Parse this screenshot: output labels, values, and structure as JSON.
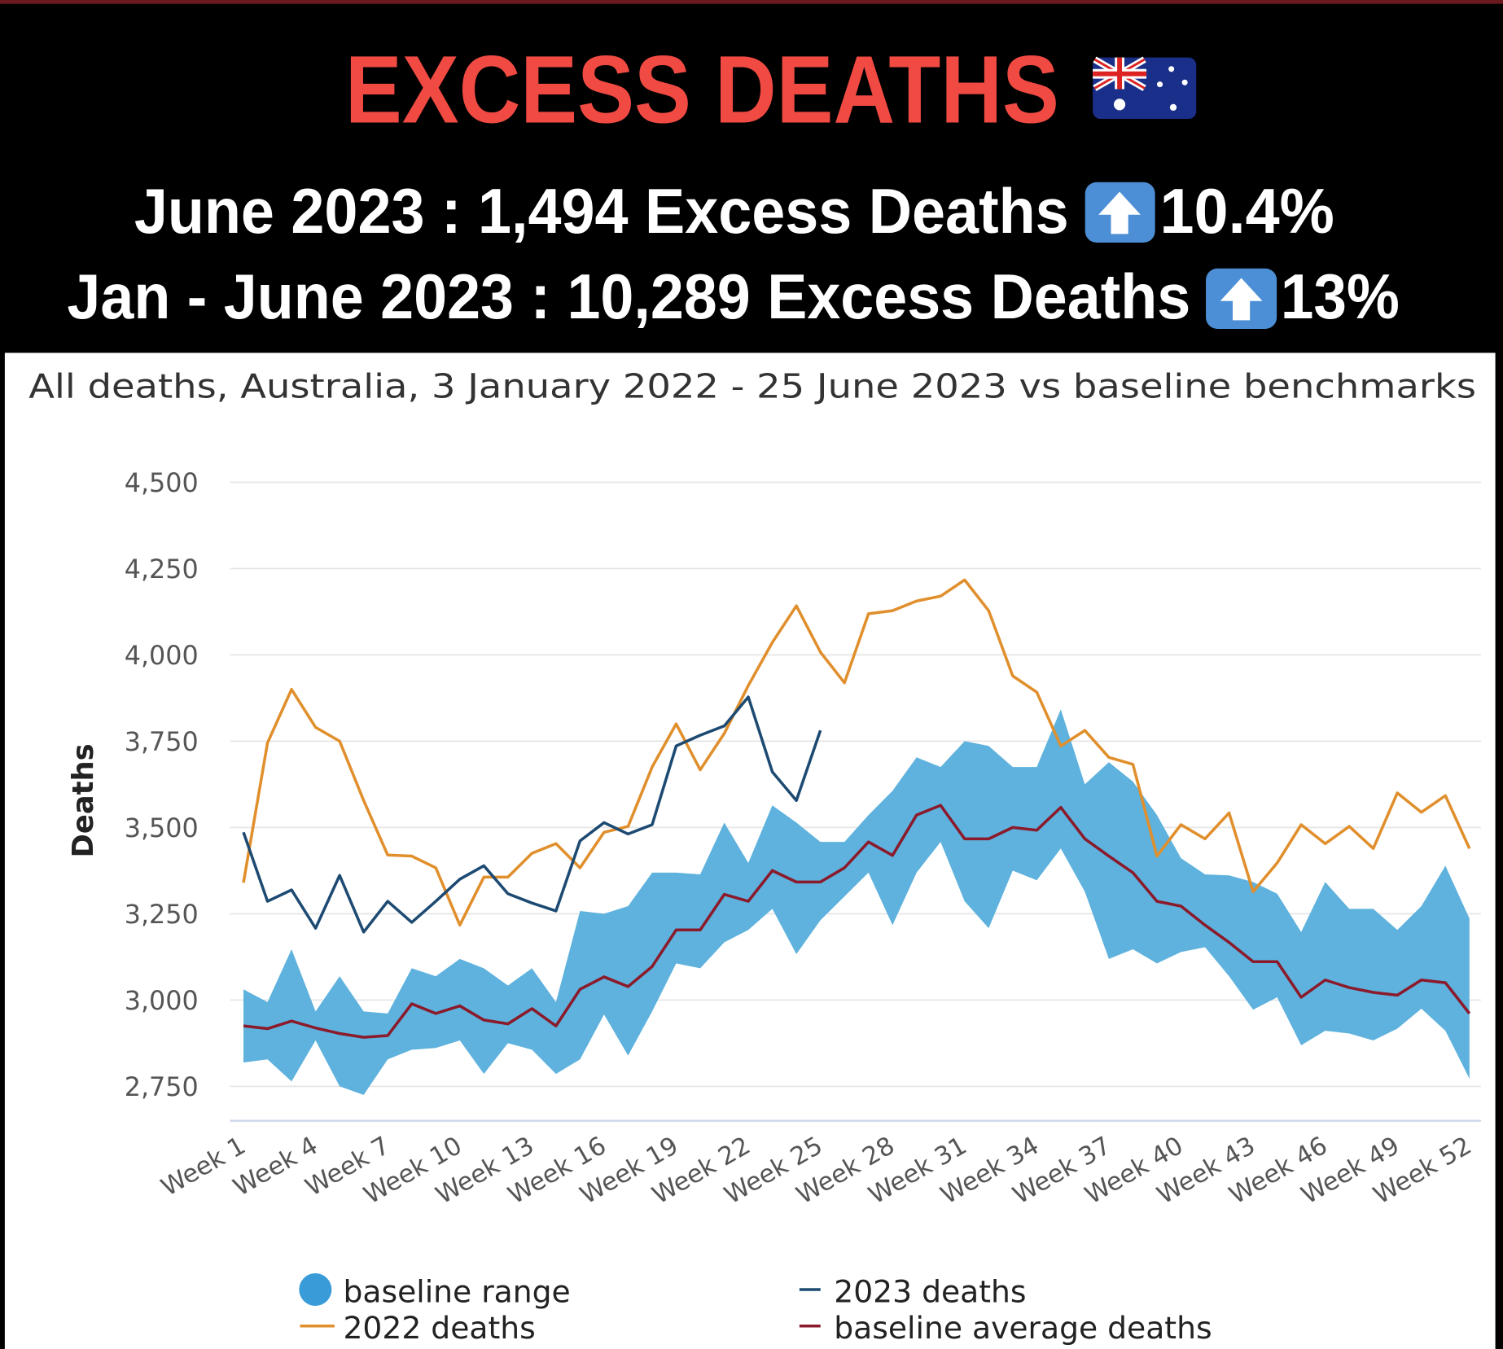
{
  "header": {
    "title": "EXCESS DEATHS",
    "lines": [
      {
        "text": "June 2023 : 1,494 Excess Deaths",
        "change": "10.4%"
      },
      {
        "text": "Jan - June 2023 : 10,289 Excess Deaths",
        "change": "13%"
      }
    ]
  },
  "chart_data": {
    "type": "line",
    "title": "All deaths, Australia, 3 January 2022 - 25 June 2023 vs baseline benchmarks",
    "y_label": "Deaths",
    "categories": [
      "Week 1",
      null,
      null,
      "Week 4",
      null,
      null,
      "Week 7",
      null,
      null,
      "Week 10",
      null,
      null,
      "Week 13",
      null,
      null,
      "Week 16",
      null,
      null,
      "Week 19",
      null,
      null,
      "Week 22",
      null,
      null,
      "Week 25",
      null,
      null,
      "Week 28",
      null,
      null,
      "Week 31",
      null,
      null,
      "Week 34",
      null,
      null,
      "Week 37",
      null,
      null,
      "Week 40",
      null,
      null,
      "Week 43",
      null,
      null,
      "Week 46",
      null,
      null,
      "Week 49",
      null,
      null,
      "Week 52"
    ],
    "series": [
      {
        "name": "baseline range",
        "color": "#5eb2dd",
        "marker_color": "#3a9bd9",
        "upper": [
          3031,
          2994,
          3147,
          2967,
          3069,
          2967,
          2961,
          3092,
          3069,
          3119,
          3092,
          3042,
          3092,
          2994,
          3258,
          3250,
          3272,
          3369,
          3369,
          3364,
          3514,
          3397,
          3564,
          3514,
          3458,
          3458,
          3536,
          3606,
          3703,
          3675,
          3750,
          3736,
          3675,
          3675,
          3842,
          3625,
          3689,
          3633,
          3536,
          3411,
          3364,
          3361,
          3342,
          3308,
          3197,
          3342,
          3264,
          3264,
          3203,
          3272,
          3389,
          3236
        ],
        "lower": [
          2819,
          2828,
          2764,
          2883,
          2750,
          2725,
          2828,
          2856,
          2861,
          2883,
          2786,
          2875,
          2856,
          2786,
          2828,
          2958,
          2839,
          2967,
          3106,
          3092,
          3167,
          3203,
          3264,
          3133,
          3231,
          3300,
          3369,
          3217,
          3369,
          3458,
          3286,
          3208,
          3375,
          3347,
          3439,
          3314,
          3119,
          3147,
          3106,
          3139,
          3153,
          3069,
          2972,
          3008,
          2869,
          2911,
          2903,
          2883,
          2917,
          2975,
          2911,
          2772
        ]
      },
      {
        "name": "2023 deaths",
        "color": "#1d4a72",
        "values": [
          3486,
          3286,
          3319,
          3208,
          3361,
          3197,
          3286,
          3225,
          3286,
          3350,
          3389,
          3308,
          3281,
          3258,
          3461,
          3514,
          3481,
          3508,
          3736,
          3767,
          3794,
          3878,
          3661,
          3578,
          3781,
          null,
          null,
          null,
          null,
          null,
          null,
          null,
          null,
          null,
          null,
          null,
          null,
          null,
          null,
          null,
          null,
          null,
          null,
          null,
          null,
          null,
          null,
          null,
          null,
          null,
          null,
          null
        ]
      },
      {
        "name": "2022 deaths",
        "color": "#e08f2c",
        "values": [
          3340,
          3745,
          3900,
          3790,
          3750,
          3578,
          3420,
          3417,
          3383,
          3217,
          3356,
          3356,
          3425,
          3453,
          3383,
          3486,
          3503,
          3675,
          3800,
          3667,
          3772,
          3911,
          4036,
          4142,
          4008,
          3919,
          4119,
          4128,
          4156,
          4170,
          4217,
          4128,
          3939,
          3892,
          3736,
          3781,
          3703,
          3683,
          3417,
          3508,
          3467,
          3542,
          3314,
          3397,
          3508,
          3453,
          3503,
          3439,
          3600,
          3544,
          3592,
          3439
        ]
      },
      {
        "name": "baseline average deaths",
        "color": "#8b1a2b",
        "values": [
          2925,
          2917,
          2939,
          2919,
          2903,
          2892,
          2897,
          2989,
          2961,
          2983,
          2942,
          2931,
          2975,
          2925,
          3031,
          3067,
          3039,
          3097,
          3203,
          3203,
          3306,
          3286,
          3375,
          3342,
          3342,
          3383,
          3458,
          3419,
          3536,
          3564,
          3467,
          3467,
          3500,
          3492,
          3558,
          3467,
          3417,
          3369,
          3286,
          3272,
          3217,
          3167,
          3111,
          3111,
          3008,
          3058,
          3036,
          3022,
          3014,
          3058,
          3050,
          2961
        ]
      }
    ],
    "ylim": [
      2650,
      4500
    ],
    "yticks": [
      {
        "value": 2750,
        "label": "2,750"
      },
      {
        "value": 3000,
        "label": "3,000"
      },
      {
        "value": 3250,
        "label": "3,250"
      },
      {
        "value": 3500,
        "label": "3,500"
      },
      {
        "value": 3750,
        "label": "3,750"
      },
      {
        "value": 4000,
        "label": "4,000"
      },
      {
        "value": 4250,
        "label": "4,250"
      },
      {
        "value": 4500,
        "label": "4,500"
      }
    ],
    "grid": true,
    "legend": "bottom"
  }
}
